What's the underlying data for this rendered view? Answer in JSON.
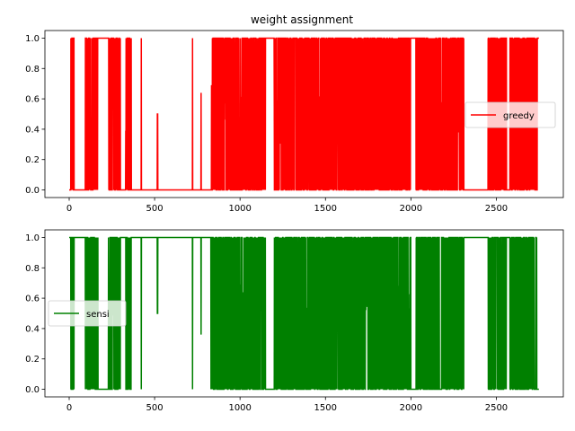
{
  "chart_data": [
    {
      "type": "line",
      "title": "weight assignment",
      "xlabel": "",
      "ylabel": "",
      "xlim": [
        -142,
        2892
      ],
      "ylim": [
        -0.05,
        1.05
      ],
      "x_ticks": [
        0,
        500,
        1000,
        1500,
        2000,
        2500
      ],
      "y_ticks": [
        0.0,
        0.2,
        0.4,
        0.6,
        0.8,
        1.0
      ],
      "x_tick_labels": [
        "0",
        "500",
        "1000",
        "1500",
        "2000",
        "2500"
      ],
      "y_tick_labels": [
        "0.0",
        "0.2",
        "0.4",
        "0.6",
        "0.8",
        "1.0"
      ],
      "grid": false,
      "legend_position": "center-right",
      "series": [
        {
          "name": "greedy",
          "color": "#ff0000",
          "base": 0,
          "segments": [
            [
              0,
              10,
              0
            ],
            [
              10,
              30,
              "osc"
            ],
            [
              30,
              95,
              0
            ],
            [
              95,
              170,
              "osc"
            ],
            [
              170,
              230,
              1
            ],
            [
              230,
              300,
              "osc"
            ],
            [
              300,
              330,
              0
            ],
            [
              330,
              365,
              "osc"
            ],
            [
              365,
              420,
              0
            ],
            [
              420,
              425,
              "spike"
            ],
            [
              425,
              515,
              0
            ],
            [
              515,
              520,
              "half"
            ],
            [
              520,
              720,
              0
            ],
            [
              720,
              725,
              "spike"
            ],
            [
              725,
              770,
              0
            ],
            [
              770,
              775,
              "spike064"
            ],
            [
              775,
              830,
              0
            ],
            [
              830,
              1150,
              "osc"
            ],
            [
              1150,
              1200,
              1
            ],
            [
              1200,
              2000,
              "osc"
            ],
            [
              2000,
              2030,
              1
            ],
            [
              2030,
              2310,
              "osc"
            ],
            [
              2310,
              2450,
              0
            ],
            [
              2450,
              2560,
              "osc"
            ],
            [
              2560,
              2580,
              0
            ],
            [
              2580,
              2740,
              "osc"
            ],
            [
              2740,
              2750,
              1
            ]
          ]
        },
        {
          "name": "sensi",
          "color": "#008000",
          "base": 1,
          "segments": [
            [
              0,
              10,
              1
            ],
            [
              10,
              30,
              "osc"
            ],
            [
              30,
              95,
              1
            ],
            [
              95,
              170,
              "osc"
            ],
            [
              170,
              230,
              0
            ],
            [
              230,
              300,
              "osc"
            ],
            [
              300,
              330,
              1
            ],
            [
              330,
              365,
              "osc"
            ],
            [
              365,
              420,
              1
            ],
            [
              420,
              425,
              "spike"
            ],
            [
              425,
              515,
              1
            ],
            [
              515,
              520,
              "half"
            ],
            [
              520,
              720,
              1
            ],
            [
              720,
              725,
              "spike"
            ],
            [
              725,
              770,
              1
            ],
            [
              770,
              775,
              "spike036"
            ],
            [
              775,
              830,
              1
            ],
            [
              830,
              1150,
              "osc"
            ],
            [
              1150,
              1200,
              0
            ],
            [
              1200,
              2000,
              "osc"
            ],
            [
              2000,
              2030,
              0
            ],
            [
              2030,
              2310,
              "osc"
            ],
            [
              2310,
              2450,
              1
            ],
            [
              2450,
              2560,
              "osc"
            ],
            [
              2560,
              2580,
              1
            ],
            [
              2580,
              2740,
              "osc"
            ],
            [
              2740,
              2750,
              0
            ]
          ]
        }
      ]
    }
  ]
}
